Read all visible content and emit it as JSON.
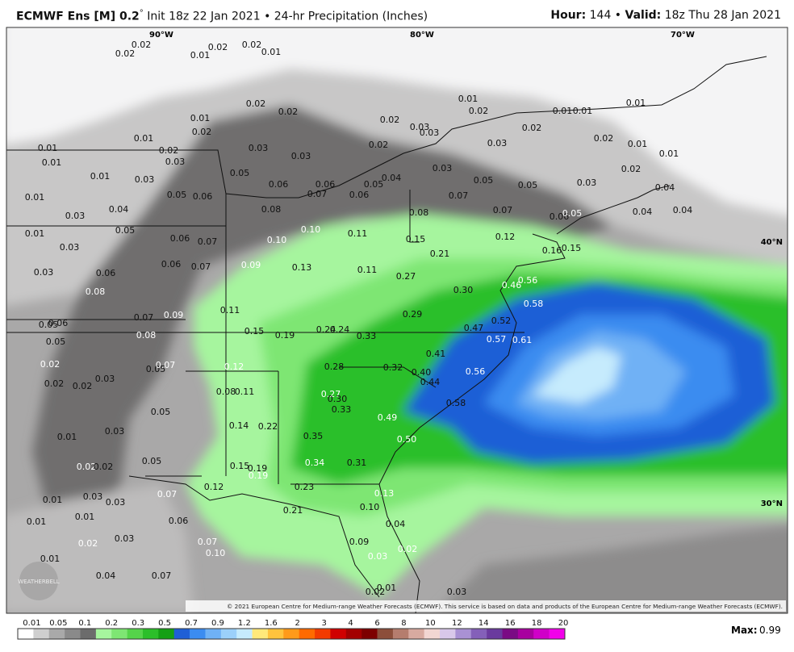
{
  "header": {
    "model": "ECMWF Ens [M] 0.2",
    "degree": "°",
    "init": "Init 18z 22 Jan 2021 • 24-hr Precipitation (Inches)",
    "hour_label": "Hour:",
    "hour": "144 •",
    "valid_label": "Valid:",
    "valid": "18z Thu 28 Jan 2021"
  },
  "map": {
    "lon_labels": [
      "90°W",
      "80°W",
      "70°W"
    ],
    "lat_labels": [
      "40°N",
      "30°N"
    ],
    "labels": [
      "0.02",
      "0.02",
      "0.02",
      "0.01",
      "0.02",
      "0.01",
      "0.02",
      "0.02",
      "0.01",
      "0.02",
      "0.01",
      "0.01",
      "0.02",
      "0.01",
      "0.01",
      "0.01",
      "0.02",
      "0.03",
      "0.03",
      "0.02",
      "0.02",
      "0.01",
      "0.01",
      "0.01",
      "0.01",
      "0.02",
      "0.03",
      "0.03",
      "0.03",
      "0.02",
      "0.03",
      "0.01",
      "0.03",
      "0.05",
      "0.06",
      "0.06",
      "0.05",
      "0.04",
      "0.03",
      "0.05",
      "0.05",
      "0.03",
      "0.02",
      "0.04",
      "0.01",
      "0.05",
      "0.06",
      "0.07",
      "0.06",
      "0.07",
      "0.03",
      "0.04",
      "0.08",
      "0.08",
      "0.07",
      "0.06",
      "0.05",
      "0.04",
      "0.04",
      "0.01",
      "0.05",
      "0.10",
      "0.11",
      "0.15",
      "0.12",
      "0.03",
      "0.06",
      "0.07",
      "0.10",
      "0.16",
      "0.15",
      "0.03",
      "0.06",
      "0.06",
      "0.07",
      "0.09",
      "0.13",
      "0.11",
      "0.21",
      "0.27",
      "0.08",
      "0.30",
      "0.46",
      "0.56",
      "0.58",
      "0.06",
      "0.05",
      "0.07",
      "0.09",
      "0.11",
      "0.29",
      "0.52",
      "0.05",
      "0.08",
      "0.15",
      "0.19",
      "0.24",
      "0.24",
      "0.33",
      "0.47",
      "0.57",
      "0.61",
      "0.02",
      "0.05",
      "0.07",
      "0.12",
      "0.28",
      "0.32",
      "0.41",
      "0.02",
      "0.02",
      "0.03",
      "0.40",
      "0.44",
      "0.56",
      "0.08",
      "0.11",
      "0.27",
      "0.30",
      "0.33",
      "0.58",
      "0.05",
      "0.49",
      "0.14",
      "0.22",
      "0.03",
      "0.01",
      "0.35",
      "0.50",
      "0.05",
      "0.02",
      "0.02",
      "0.15",
      "0.19",
      "0.19",
      "0.34",
      "0.31",
      "0.07",
      "0.12",
      "0.23",
      "0.13",
      "0.03",
      "0.03",
      "0.01",
      "0.01",
      "0.01",
      "0.06",
      "0.21",
      "0.10",
      "0.04",
      "0.02",
      "0.03",
      "0.07",
      "0.10",
      "0.09",
      "0.03",
      "0.02",
      "0.01",
      "0.04",
      "0.07",
      "0.02",
      "0.01",
      "0.03"
    ]
  },
  "copyright": "© 2021 European Centre for Medium-range Weather Forecasts (ECMWF). This service is based on data and products of the European Centre for Medium-range Weather Forecasts (ECMWF).",
  "logo": "WEATHERBELL",
  "colorbar": {
    "labels": [
      "0.01",
      "0.05",
      "0.1",
      "0.2",
      "0.3",
      "0.5",
      "0.7",
      "0.9",
      "1.2",
      "1.6",
      "2",
      "3",
      "4",
      "6",
      "8",
      "10",
      "12",
      "14",
      "16",
      "18",
      "20"
    ],
    "colors": [
      "#ffffff",
      "#cfcfcf",
      "#a9a9a9",
      "#8a8a8a",
      "#6c6c6c",
      "#a6f59e",
      "#7ee673",
      "#55d44a",
      "#2cbf2a",
      "#14a014",
      "#1f5fd6",
      "#3b8cf0",
      "#6fb1f5",
      "#9bd0fa",
      "#c6ebfd",
      "#ffe97a",
      "#ffc33d",
      "#ff9a1a",
      "#ff6a00",
      "#f23a00",
      "#d00000",
      "#a30000",
      "#7d0000",
      "#8c4e3a",
      "#b57d6e",
      "#d8aaa0",
      "#f2d6d2",
      "#d9c8ea",
      "#a991d4",
      "#8460b9",
      "#6a3a9e",
      "#7a0b84",
      "#a8009f",
      "#d000c8",
      "#f200ea"
    ]
  },
  "max_label": "Max:",
  "max_value": "0.99"
}
